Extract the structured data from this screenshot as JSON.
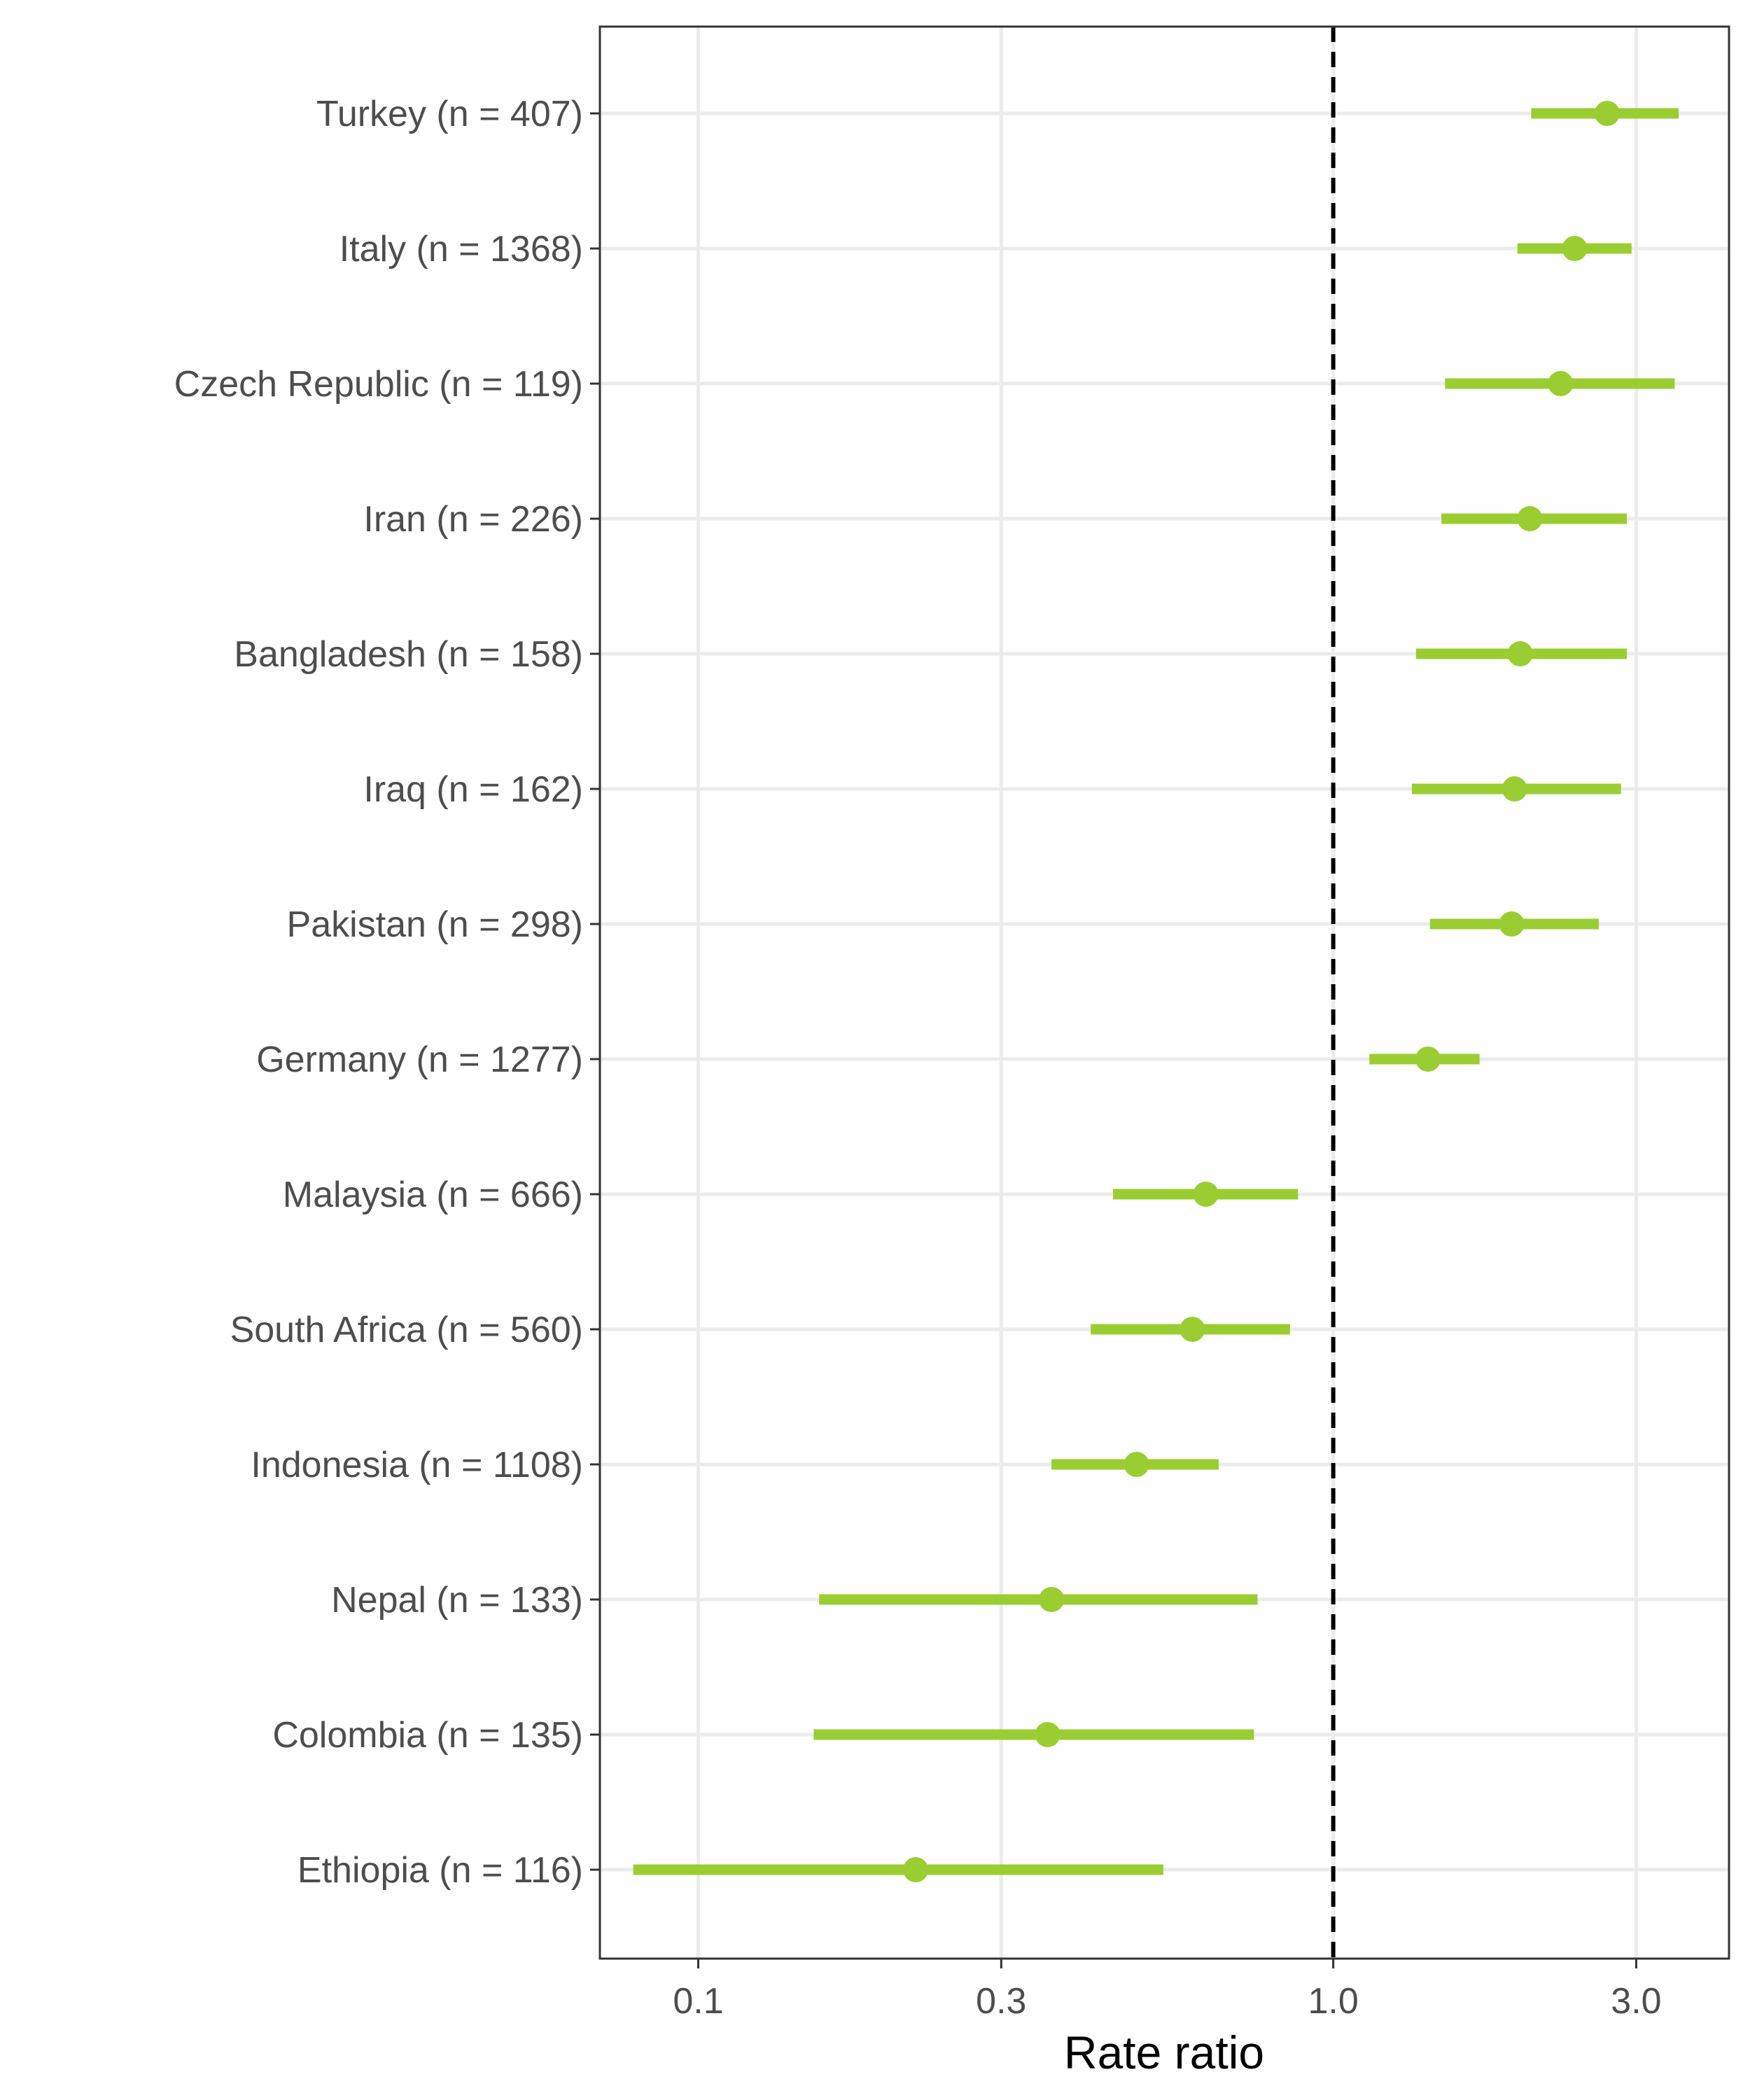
{
  "chart_data": {
    "type": "forest",
    "xlabel": "Rate ratio",
    "xscale": "log",
    "xlim": [
      0.07,
      4.2
    ],
    "xticks": [
      0.1,
      0.3,
      1.0,
      3.0
    ],
    "xtick_labels": [
      "0.1",
      "0.3",
      "1.0",
      "3.0"
    ],
    "reference_line": {
      "value": 1.0,
      "style": "dashed",
      "color": "#000000"
    },
    "grid": true,
    "point_color": "#9acd32",
    "rows": [
      {
        "label": "Turkey (n = 407)",
        "estimate": 2.7,
        "lower": 2.05,
        "upper": 3.5
      },
      {
        "label": "Italy (n = 1368)",
        "estimate": 2.4,
        "lower": 1.95,
        "upper": 2.95
      },
      {
        "label": "Czech Republic (n = 119)",
        "estimate": 2.28,
        "lower": 1.5,
        "upper": 3.45
      },
      {
        "label": "Iran (n = 226)",
        "estimate": 2.04,
        "lower": 1.48,
        "upper": 2.9
      },
      {
        "label": "Bangladesh (n = 158)",
        "estimate": 1.97,
        "lower": 1.35,
        "upper": 2.9
      },
      {
        "label": "Iraq (n = 162)",
        "estimate": 1.93,
        "lower": 1.33,
        "upper": 2.84
      },
      {
        "label": "Pakistan (n = 298)",
        "estimate": 1.91,
        "lower": 1.42,
        "upper": 2.62
      },
      {
        "label": "Germany (n = 1277)",
        "estimate": 1.41,
        "lower": 1.14,
        "upper": 1.7
      },
      {
        "label": "Malaysia (n = 666)",
        "estimate": 0.63,
        "lower": 0.45,
        "upper": 0.88
      },
      {
        "label": "South Africa (n = 560)",
        "estimate": 0.6,
        "lower": 0.415,
        "upper": 0.855
      },
      {
        "label": "Indonesia (n = 1108)",
        "estimate": 0.49,
        "lower": 0.36,
        "upper": 0.66
      },
      {
        "label": "Nepal (n = 133)",
        "estimate": 0.36,
        "lower": 0.155,
        "upper": 0.76
      },
      {
        "label": "Colombia (n = 135)",
        "estimate": 0.355,
        "lower": 0.152,
        "upper": 0.75
      },
      {
        "label": "Ethiopia (n = 116)",
        "estimate": 0.22,
        "lower": 0.079,
        "upper": 0.54
      }
    ]
  }
}
